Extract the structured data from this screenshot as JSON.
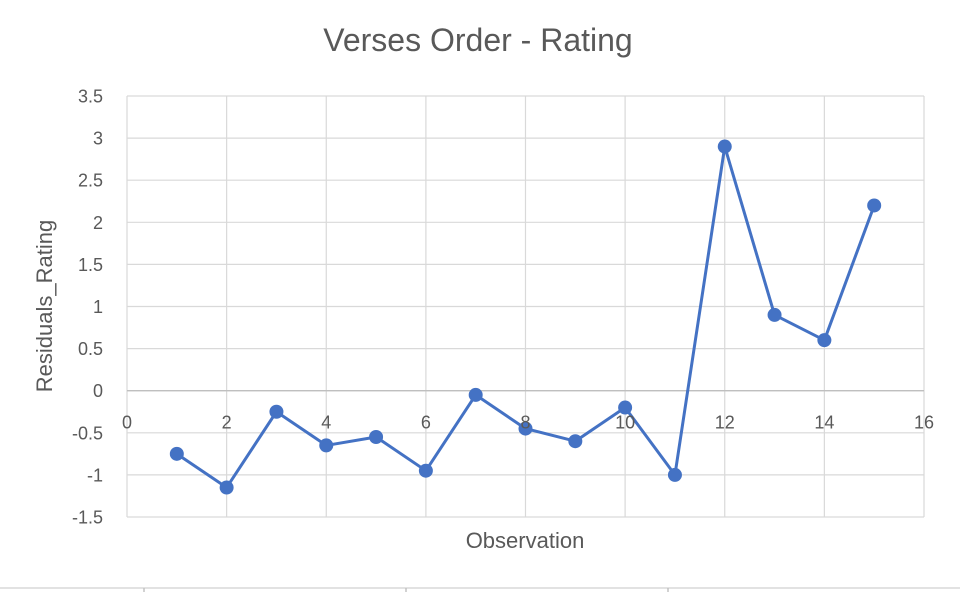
{
  "chart_data": {
    "type": "scatter",
    "title": "Verses Order - Rating",
    "xlabel": "Observation",
    "ylabel": "Residuals_Rating",
    "xlim": [
      0,
      16
    ],
    "ylim": [
      -1.5,
      3.5
    ],
    "xticks": [
      0,
      2,
      4,
      6,
      8,
      10,
      12,
      14,
      16
    ],
    "yticks": [
      -1.5,
      -1,
      -0.5,
      0,
      0.5,
      1,
      1.5,
      2,
      2.5,
      3,
      3.5
    ],
    "xtick_labels": [
      "0",
      "2",
      "4",
      "6",
      "8",
      "10",
      "12",
      "14",
      "16"
    ],
    "ytick_labels": [
      "-1.5",
      "-1",
      "-0.5",
      "0",
      "0.5",
      "1",
      "1.5",
      "2",
      "2.5",
      "3",
      "3.5"
    ],
    "grid": true,
    "series": [
      {
        "color": "#4472C4",
        "x": [
          1,
          2,
          3,
          4,
          5,
          6,
          7,
          8,
          9,
          10,
          11,
          12,
          13,
          14,
          15
        ],
        "y": [
          -0.75,
          -1.15,
          -0.25,
          -0.65,
          -0.55,
          -0.95,
          -0.05,
          -0.45,
          -0.6,
          -0.2,
          -1.0,
          2.9,
          0.9,
          0.6,
          2.2
        ]
      }
    ]
  }
}
